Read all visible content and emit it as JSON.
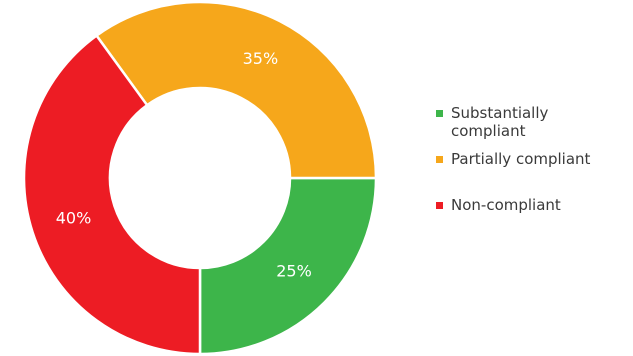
{
  "chart_data": {
    "type": "pie",
    "donut": true,
    "slices": [
      {
        "name": "Substantially compliant",
        "value": 25,
        "label": "25%",
        "color": "#3db54a"
      },
      {
        "name": "Partially compliant",
        "value": 35,
        "label": "35%",
        "color": "#f6a71b"
      },
      {
        "name": "Non-compliant",
        "value": 40,
        "label": "40%",
        "color": "#ed1c24"
      }
    ],
    "legend_position": "right"
  },
  "legend": {
    "items": [
      {
        "label": "Substantially compliant",
        "color": "#3db54a"
      },
      {
        "label": "Partially compliant",
        "color": "#f6a71b"
      },
      {
        "label": "Non-compliant",
        "color": "#ed1c24"
      }
    ]
  }
}
